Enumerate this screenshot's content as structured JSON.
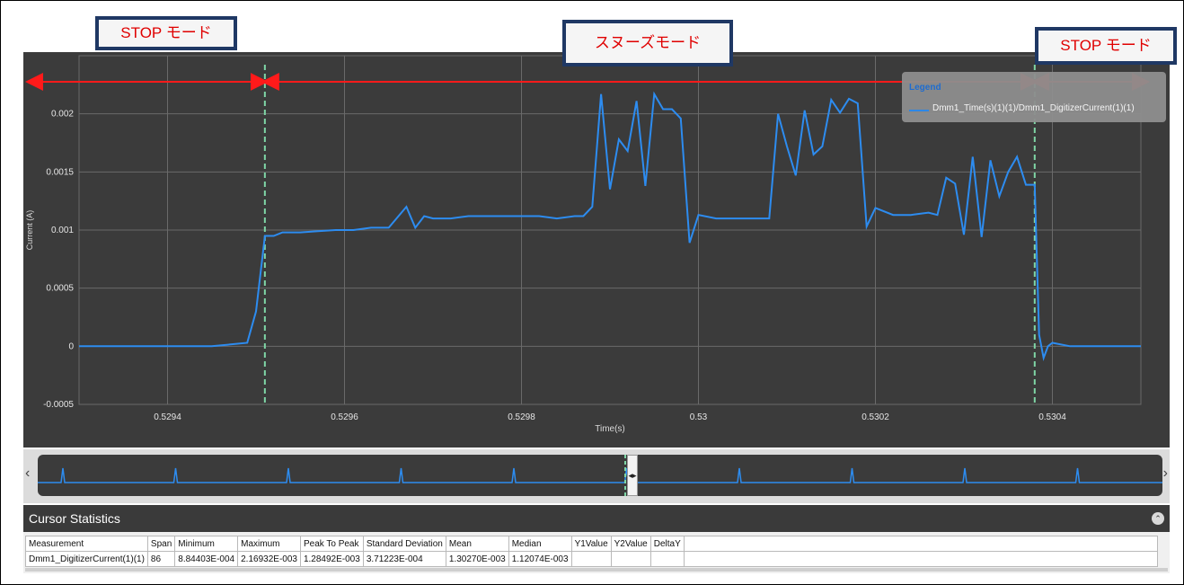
{
  "annotations": {
    "stop_left": "STOP モード",
    "snooze": "スヌーズモード",
    "stop_right": "STOP モード"
  },
  "colors": {
    "plot_bg": "#3b3b3b",
    "grid": "#6a6a6a",
    "trace": "#2d8cf0",
    "cursor": "#7fd6a6",
    "arrow": "#ff1a1a",
    "callout_border": "#1f3864",
    "callout_text": "#e00000"
  },
  "legend": {
    "title": "Legend",
    "entry": "Dmm1_Time(s)(1)(1)/Dmm1_DigitizerCurrent(1)(1)"
  },
  "chart_data": {
    "type": "line",
    "xlabel": "Time(s)",
    "ylabel": "Current (A)",
    "xlim": [
      0.5293,
      0.5305
    ],
    "ylim": [
      -0.0005,
      0.0025
    ],
    "x_ticks": [
      0.5294,
      0.5296,
      0.5298,
      0.53,
      0.5302,
      0.5304
    ],
    "x_tick_labels": [
      "0.5294",
      "0.5296",
      "0.5298",
      "0.53",
      "0.5302",
      "0.5304"
    ],
    "y_ticks": [
      -0.0005,
      0,
      0.0005,
      0.001,
      0.0015,
      0.002
    ],
    "y_tick_labels": [
      "-0.0005",
      "0",
      "0.0005",
      "0.001",
      "0.0015",
      "0.002"
    ],
    "grid": true,
    "legend_position": "top-right",
    "cursors_x": [
      0.52951,
      0.53038
    ],
    "series": [
      {
        "name": "Dmm1_Time(s)(1)(1)/Dmm1_DigitizerCurrent(1)(1)",
        "x": [
          0.5293,
          0.52935,
          0.5294,
          0.52945,
          0.52949,
          0.5295,
          0.52951,
          0.52952,
          0.52953,
          0.52954,
          0.52955,
          0.52957,
          0.52959,
          0.52961,
          0.52963,
          0.52965,
          0.52967,
          0.52968,
          0.52969,
          0.5297,
          0.52971,
          0.52972,
          0.52974,
          0.52976,
          0.52978,
          0.5298,
          0.52982,
          0.52984,
          0.52986,
          0.52987,
          0.52988,
          0.52989,
          0.5299,
          0.52991,
          0.52992,
          0.52993,
          0.52994,
          0.52995,
          0.52996,
          0.52997,
          0.52998,
          0.52999,
          0.53,
          0.53002,
          0.53004,
          0.53006,
          0.53007,
          0.53008,
          0.53009,
          0.5301,
          0.53011,
          0.53012,
          0.53013,
          0.53014,
          0.53015,
          0.53016,
          0.53017,
          0.53018,
          0.53019,
          0.5302,
          0.53022,
          0.53024,
          0.53026,
          0.53027,
          0.53028,
          0.53029,
          0.5303,
          0.53031,
          0.53032,
          0.53033,
          0.53034,
          0.53035,
          0.53036,
          0.53037,
          0.53038,
          0.530385,
          0.53039,
          0.530395,
          0.5304,
          0.53042,
          0.53046,
          0.5305
        ],
        "values": [
          0,
          0,
          0,
          0,
          3e-05,
          0.0003,
          0.00095,
          0.00095,
          0.00098,
          0.00098,
          0.00098,
          0.00099,
          0.001,
          0.001,
          0.00102,
          0.00102,
          0.0012,
          0.00102,
          0.00112,
          0.0011,
          0.0011,
          0.0011,
          0.00112,
          0.00112,
          0.00112,
          0.00112,
          0.00112,
          0.0011,
          0.00112,
          0.00112,
          0.0012,
          0.00217,
          0.00135,
          0.00178,
          0.00168,
          0.00211,
          0.00138,
          0.00217,
          0.00204,
          0.00204,
          0.00196,
          0.00089,
          0.00113,
          0.0011,
          0.0011,
          0.0011,
          0.0011,
          0.0011,
          0.002,
          0.00172,
          0.00147,
          0.00203,
          0.00165,
          0.00172,
          0.00212,
          0.00201,
          0.00213,
          0.00209,
          0.00103,
          0.00119,
          0.00113,
          0.00113,
          0.00115,
          0.00113,
          0.00145,
          0.0014,
          0.00096,
          0.00163,
          0.00094,
          0.0016,
          0.00129,
          0.0015,
          0.00163,
          0.00139,
          0.00139,
          0.0001,
          -0.0001,
          0,
          3e-05,
          0,
          0,
          0
        ]
      }
    ]
  },
  "navigator": {
    "left_arrow": "‹",
    "right_arrow": "›",
    "handle_label": "◂▸",
    "spike_count": 10
  },
  "stats": {
    "title": "Cursor Statistics",
    "collapse_icon": "⌃",
    "columns": [
      "Measurement",
      "Span",
      "Minimum",
      "Maximum",
      "Peak To Peak",
      "Standard Deviation",
      "Mean",
      "Median",
      "Y1Value",
      "Y2Value",
      "DeltaY"
    ],
    "rows": [
      [
        "Dmm1_DigitizerCurrent(1)(1)",
        "86",
        "8.84403E-004",
        "2.16932E-003",
        "1.28492E-003",
        "3.71223E-004",
        "1.30270E-003",
        "1.12074E-003",
        "",
        "",
        ""
      ]
    ]
  }
}
